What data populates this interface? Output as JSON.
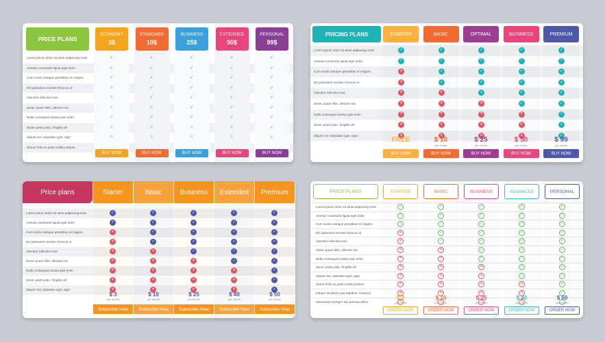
{
  "features": [
    "Lorem ipsum dolor sit amet adipiscing enim",
    "Aenean commodo ligula eget dolor",
    "Cum sociis natoque penatibus et magnis",
    "Dis parturient montes rhoncus ut",
    "nascetur ridiculus mus",
    "donec quam felis, ultricies nec",
    "Nulla consequat massa quis enim",
    "donec pede justo, fringilla vel",
    "aliquet nec vulputate eget, eget",
    "dictum felis eu pede mollis pretium",
    "Integer tincidunt cras dapibus. Vivamus",
    "elementum semper nisi aenean tellus"
  ],
  "panel1": {
    "title": "PRICE PLANS",
    "plans": [
      {
        "name": "ECONOMY",
        "price": "3$",
        "color": "#f4a51c",
        "marks": [
          1,
          1,
          1,
          0,
          0,
          0,
          0,
          0,
          0
        ],
        "button": "BUY NOW"
      },
      {
        "name": "STANDARD",
        "price": "10$",
        "color": "#f26b33",
        "marks": [
          1,
          1,
          1,
          1,
          1,
          0,
          0,
          0,
          0
        ],
        "button": "BUY NOW"
      },
      {
        "name": "BUSINESS",
        "price": "25$",
        "color": "#3aa0dc",
        "marks": [
          1,
          1,
          1,
          1,
          1,
          1,
          0,
          0,
          0
        ],
        "button": "BUY NOW"
      },
      {
        "name": "EXTENDED",
        "price": "50$",
        "color": "#e8457a",
        "marks": [
          1,
          1,
          1,
          1,
          1,
          1,
          1,
          0,
          0
        ],
        "button": "BUY NOW"
      },
      {
        "name": "PERSONAL",
        "price": "99$",
        "color": "#8a3f96",
        "marks": [
          1,
          1,
          1,
          1,
          1,
          1,
          1,
          1,
          1
        ],
        "button": "BUY NOW"
      }
    ]
  },
  "panel2": {
    "title": "PRICING PLANS",
    "plans": [
      {
        "name": "STARTER",
        "price": "FREE",
        "per": "",
        "color": "#fbb040",
        "marks": [
          1,
          1,
          0,
          0,
          0,
          0,
          0,
          0,
          0
        ],
        "button": "BUY NOW"
      },
      {
        "name": "BASIC",
        "price": "$ 10",
        "per": "per month",
        "color": "#f26b33",
        "marks": [
          1,
          1,
          1,
          1,
          0,
          0,
          0,
          0,
          0
        ],
        "button": "BUY NOW"
      },
      {
        "name": "OPTIMAL",
        "price": "$ 25",
        "per": "per month",
        "color": "#9c3f93",
        "marks": [
          1,
          1,
          1,
          1,
          1,
          0,
          0,
          0,
          0
        ],
        "button": "BUY NOW"
      },
      {
        "name": "BUSINESS",
        "price": "$ 50",
        "per": "per month",
        "color": "#e8457a",
        "marks": [
          1,
          1,
          1,
          1,
          1,
          1,
          0,
          0,
          0
        ],
        "button": "BUY NOW"
      },
      {
        "name": "PREMIUM",
        "price": "$ 99",
        "per": "per month",
        "color": "#4f57a8",
        "marks": [
          1,
          1,
          1,
          1,
          1,
          1,
          1,
          1,
          1
        ],
        "button": "BUY NOW"
      }
    ]
  },
  "panel3": {
    "title": "Price plans",
    "plans": [
      {
        "name": "Starter",
        "price": "$ 3",
        "per": "per month",
        "marks": [
          1,
          1,
          0,
          0,
          0,
          0,
          0,
          0,
          0
        ],
        "button": "Subscribe Now"
      },
      {
        "name": "Basic",
        "price": "$ 10",
        "per": "per month",
        "marks": [
          1,
          1,
          1,
          1,
          0,
          0,
          0,
          0,
          0
        ],
        "button": "Subscribe Now"
      },
      {
        "name": "Business",
        "price": "$ 25",
        "per": "per month",
        "marks": [
          1,
          1,
          1,
          1,
          1,
          0,
          0,
          0,
          0
        ],
        "button": "Subscribe Now"
      },
      {
        "name": "Extended",
        "price": "$ 40",
        "per": "per month",
        "marks": [
          1,
          1,
          1,
          1,
          1,
          1,
          0,
          0,
          0
        ],
        "button": "Subscribe Now"
      },
      {
        "name": "Premium",
        "price": "$ 50",
        "per": "per month",
        "marks": [
          1,
          1,
          1,
          1,
          1,
          1,
          1,
          1,
          1
        ],
        "button": "Subscribe Now"
      }
    ]
  },
  "panel4": {
    "title": "PRICE PLANS",
    "plans": [
      {
        "name": "STARTER",
        "price": "$ 3",
        "per": "per month",
        "color": "#f4a51c",
        "marks": [
          1,
          1,
          1,
          0,
          0,
          0,
          0,
          0,
          0,
          0,
          0,
          0
        ],
        "button": "ORDER NOW"
      },
      {
        "name": "BASIC",
        "price": "$ 10",
        "per": "per month",
        "color": "#f26b33",
        "marks": [
          1,
          1,
          1,
          1,
          1,
          0,
          0,
          0,
          0,
          0,
          0,
          0
        ],
        "button": "ORDER NOW"
      },
      {
        "name": "BUSINESS",
        "price": "$ 25",
        "per": "per month",
        "color": "#e8457a",
        "marks": [
          1,
          1,
          1,
          1,
          1,
          1,
          1,
          0,
          0,
          0,
          0,
          0
        ],
        "button": "ORDER NOW"
      },
      {
        "name": "ADVANCED",
        "price": "$ 40",
        "per": "per month",
        "color": "#3bb8c3",
        "marks": [
          1,
          1,
          1,
          1,
          1,
          1,
          1,
          1,
          1,
          0,
          0,
          0
        ],
        "button": "ORDER NOW"
      },
      {
        "name": "PERSONAL",
        "price": "$ 50",
        "per": "per month",
        "color": "#4f57a8",
        "marks": [
          1,
          1,
          1,
          1,
          1,
          1,
          1,
          1,
          1,
          1,
          1,
          1
        ],
        "button": "ORDER NOW"
      }
    ]
  },
  "colors": {
    "green_title": "#8cc63f",
    "teal_title": "#1fb3b7",
    "pink_title": "#c7365f",
    "orange_head": "#f7941d",
    "check_green": "#5cb85c",
    "cross_red": "#e05561",
    "check_blue": "#4f57a8"
  }
}
